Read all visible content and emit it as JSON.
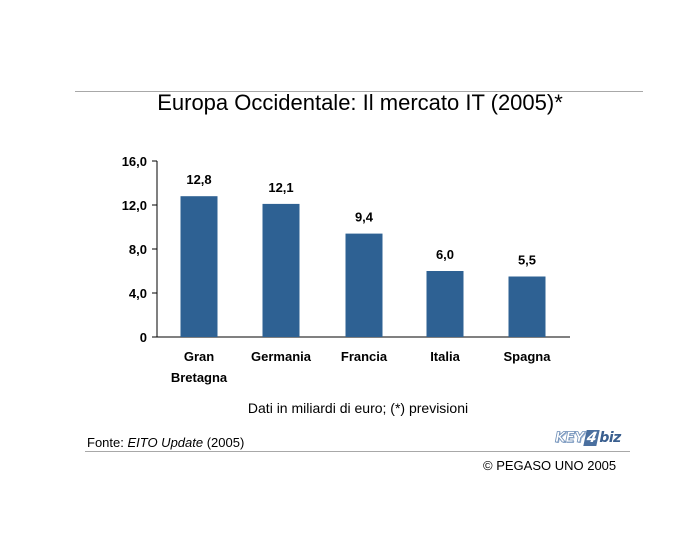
{
  "chart_data": {
    "type": "bar",
    "title": "Europa Occidentale: Il mercato IT (2005)*",
    "categories": [
      [
        "Gran",
        "Bretagna"
      ],
      [
        "Germania"
      ],
      [
        "Francia"
      ],
      [
        "Italia"
      ],
      [
        "Spagna"
      ]
    ],
    "values": [
      12.8,
      12.1,
      9.4,
      6.0,
      5.5
    ],
    "data_labels": [
      "12,8",
      "12,1",
      "9,4",
      "6,0",
      "5,5"
    ],
    "y_ticks": [
      {
        "value": 0,
        "label": "0"
      },
      {
        "value": 4,
        "label": "4,0"
      },
      {
        "value": 8,
        "label": "8,0"
      },
      {
        "value": 12,
        "label": "12,0"
      },
      {
        "value": 16,
        "label": "16,0"
      }
    ],
    "ylim": [
      0,
      16
    ],
    "grid": false,
    "legend": "none",
    "bar_color": "#2e6193",
    "xlabel": "",
    "ylabel": ""
  },
  "note": "Dati in miliardi di euro; (*) previsioni",
  "source": {
    "prefix": "Fonte: ",
    "work": "EITO Update",
    "suffix": " (2005)"
  },
  "logo": {
    "part1": "KEY",
    "part2": "4",
    "part3": "biz"
  },
  "copyright": "© PEGASO UNO 2005"
}
